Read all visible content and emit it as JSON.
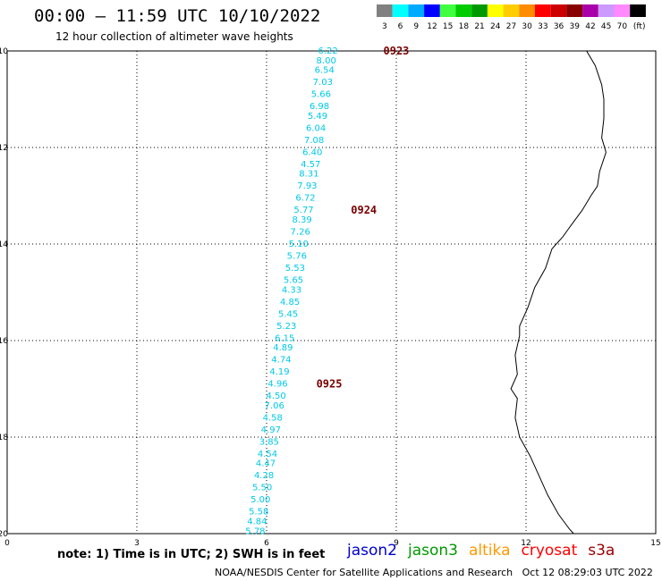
{
  "header": {
    "title": "00:00 – 11:59 UTC 10/10/2022",
    "subtitle": "12 hour collection of altimeter wave heights"
  },
  "legend": {
    "unit": "(ft)",
    "entries": [
      {
        "label": "3",
        "color": "#808080"
      },
      {
        "label": "6",
        "color": "#00ffff"
      },
      {
        "label": "9",
        "color": "#00aaff"
      },
      {
        "label": "12",
        "color": "#0000ff"
      },
      {
        "label": "15",
        "color": "#40ff40"
      },
      {
        "label": "18",
        "color": "#00cc00"
      },
      {
        "label": "21",
        "color": "#009900"
      },
      {
        "label": "24",
        "color": "#ffff00"
      },
      {
        "label": "27",
        "color": "#ffcc00"
      },
      {
        "label": "30",
        "color": "#ff8c00"
      },
      {
        "label": "33",
        "color": "#ff0000"
      },
      {
        "label": "36",
        "color": "#cc0000"
      },
      {
        "label": "39",
        "color": "#880000"
      },
      {
        "label": "42",
        "color": "#aa00aa"
      },
      {
        "label": "45",
        "color": "#cc99ff"
      },
      {
        "label": "70",
        "color": "#ff88ff"
      },
      {
        "label": "",
        "color": "#000000"
      }
    ]
  },
  "axes": {
    "x_ticks": [
      0,
      3,
      6,
      9,
      12,
      15
    ],
    "y_ticks": [
      -10,
      -12,
      -14,
      -16,
      -18,
      -20
    ],
    "x_range": [
      0,
      15
    ],
    "y_range": [
      -20,
      -10
    ]
  },
  "track": {
    "color": "#00c8e8",
    "points": [
      {
        "lon": 7.65,
        "lat": -10.0,
        "v": "6.22"
      },
      {
        "lon": 7.61,
        "lat": -10.2,
        "v": "8.00"
      },
      {
        "lon": 7.57,
        "lat": -10.4,
        "v": "6.54"
      },
      {
        "lon": 7.53,
        "lat": -10.65,
        "v": "7.03"
      },
      {
        "lon": 7.49,
        "lat": -10.9,
        "v": "5.66"
      },
      {
        "lon": 7.45,
        "lat": -11.15,
        "v": "6.98"
      },
      {
        "lon": 7.41,
        "lat": -11.35,
        "v": "5.49"
      },
      {
        "lon": 7.37,
        "lat": -11.6,
        "v": "6.04"
      },
      {
        "lon": 7.33,
        "lat": -11.85,
        "v": "7.08"
      },
      {
        "lon": 7.29,
        "lat": -12.1,
        "v": "6.40"
      },
      {
        "lon": 7.25,
        "lat": -12.35,
        "v": "4.57"
      },
      {
        "lon": 7.21,
        "lat": -12.55,
        "v": "8.31"
      },
      {
        "lon": 7.17,
        "lat": -12.8,
        "v": "7.93"
      },
      {
        "lon": 7.13,
        "lat": -13.05,
        "v": "6.72"
      },
      {
        "lon": 7.09,
        "lat": -13.3,
        "v": "5.77"
      },
      {
        "lon": 7.05,
        "lat": -13.5,
        "v": "8.39"
      },
      {
        "lon": 7.01,
        "lat": -13.75,
        "v": "7.26"
      },
      {
        "lon": 6.97,
        "lat": -14.0,
        "v": "5.10"
      },
      {
        "lon": 6.93,
        "lat": -14.25,
        "v": "5.76"
      },
      {
        "lon": 6.89,
        "lat": -14.5,
        "v": "5.53"
      },
      {
        "lon": 6.85,
        "lat": -14.75,
        "v": "5.65"
      },
      {
        "lon": 6.81,
        "lat": -14.95,
        "v": "4.33"
      },
      {
        "lon": 6.77,
        "lat": -15.2,
        "v": "4.85"
      },
      {
        "lon": 6.73,
        "lat": -15.45,
        "v": "5.45"
      },
      {
        "lon": 6.69,
        "lat": -15.7,
        "v": "5.23"
      },
      {
        "lon": 6.65,
        "lat": -15.95,
        "v": "6.15"
      },
      {
        "lon": 6.61,
        "lat": -16.15,
        "v": "4.89"
      },
      {
        "lon": 6.57,
        "lat": -16.4,
        "v": "4.74"
      },
      {
        "lon": 6.53,
        "lat": -16.65,
        "v": "4.19"
      },
      {
        "lon": 6.49,
        "lat": -16.9,
        "v": "4.96"
      },
      {
        "lon": 6.45,
        "lat": -17.15,
        "v": "4.50"
      },
      {
        "lon": 6.41,
        "lat": -17.35,
        "v": "7.06"
      },
      {
        "lon": 6.37,
        "lat": -17.6,
        "v": "4.58"
      },
      {
        "lon": 6.33,
        "lat": -17.85,
        "v": "4.97"
      },
      {
        "lon": 6.29,
        "lat": -18.1,
        "v": "3.85"
      },
      {
        "lon": 6.25,
        "lat": -18.35,
        "v": "4.54"
      },
      {
        "lon": 6.21,
        "lat": -18.55,
        "v": "4.47"
      },
      {
        "lon": 6.17,
        "lat": -18.8,
        "v": "4.28"
      },
      {
        "lon": 6.13,
        "lat": -19.05,
        "v": "5.50"
      },
      {
        "lon": 6.09,
        "lat": -19.3,
        "v": "5.00"
      },
      {
        "lon": 6.05,
        "lat": -19.55,
        "v": "5.58"
      },
      {
        "lon": 6.01,
        "lat": -19.75,
        "v": "4.84"
      },
      {
        "lon": 5.97,
        "lat": -19.95,
        "v": "5.78"
      }
    ],
    "time_marks": [
      {
        "lon": 8.7,
        "lat": -10.0,
        "label": "0923"
      },
      {
        "lon": 7.95,
        "lat": -13.3,
        "label": "0924"
      },
      {
        "lon": 7.15,
        "lat": -16.9,
        "label": "0925"
      }
    ]
  },
  "coastline": [
    [
      13.4,
      -10.0
    ],
    [
      13.6,
      -10.3
    ],
    [
      13.75,
      -10.7
    ],
    [
      13.8,
      -11.0
    ],
    [
      13.8,
      -11.4
    ],
    [
      13.75,
      -11.8
    ],
    [
      13.85,
      -12.1
    ],
    [
      13.7,
      -12.5
    ],
    [
      13.65,
      -12.8
    ],
    [
      13.5,
      -13.0
    ],
    [
      13.3,
      -13.3
    ],
    [
      13.05,
      -13.6
    ],
    [
      12.85,
      -13.85
    ],
    [
      12.6,
      -14.1
    ],
    [
      12.45,
      -14.5
    ],
    [
      12.2,
      -14.9
    ],
    [
      12.05,
      -15.3
    ],
    [
      11.85,
      -15.7
    ],
    [
      11.85,
      -15.9
    ],
    [
      11.75,
      -16.3
    ],
    [
      11.8,
      -16.7
    ],
    [
      11.65,
      -17.0
    ],
    [
      11.8,
      -17.2
    ],
    [
      11.75,
      -17.6
    ],
    [
      11.85,
      -18.0
    ],
    [
      12.1,
      -18.4
    ],
    [
      12.3,
      -18.8
    ],
    [
      12.5,
      -19.2
    ],
    [
      12.75,
      -19.6
    ],
    [
      13.0,
      -19.9
    ],
    [
      13.1,
      -20.0
    ]
  ],
  "footer": {
    "note": "note: 1) Time is in UTC; 2) SWH is in feet",
    "credit": "NOAA/NESDIS Center for Satellite Applications and Research   Oct 12 08:29:03 UTC 2022",
    "satellites": [
      {
        "name": "jason2",
        "color": "#0000cc"
      },
      {
        "name": "jason3",
        "color": "#009900"
      },
      {
        "name": "altika",
        "color": "#ff9900"
      },
      {
        "name": "cryosat",
        "color": "#ff0000"
      },
      {
        "name": "s3a",
        "color": "#990000"
      }
    ]
  }
}
